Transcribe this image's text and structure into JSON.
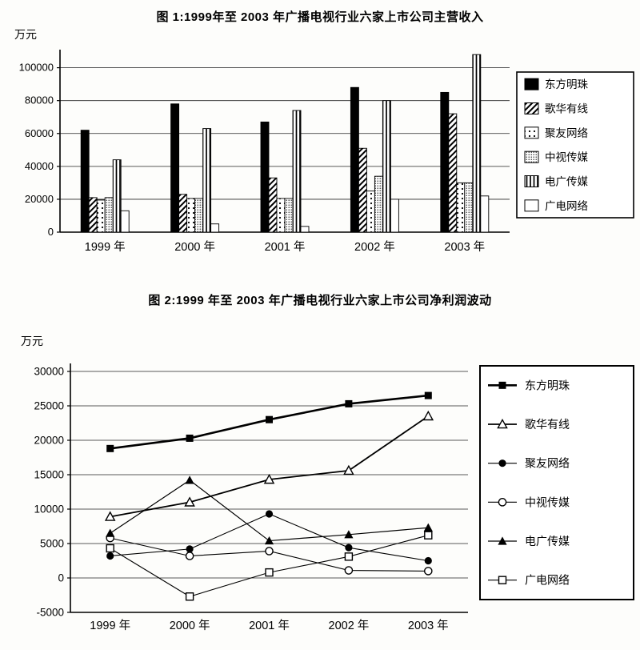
{
  "page": {
    "background": "#fdfdfb",
    "text_color": "#000000"
  },
  "chart_data": [
    {
      "id": "figure-1",
      "type": "bar",
      "title": "图 1:1999年至 2003 年广播电视行业六家上市公司主营收入",
      "ylabel": "万元",
      "xlabel": "",
      "categories": [
        "1999 年",
        "2000 年",
        "2001 年",
        "2002 年",
        "2003 年"
      ],
      "ylim": [
        0,
        111000
      ],
      "yticks": [
        0,
        20000,
        40000,
        60000,
        80000,
        100000
      ],
      "grid": true,
      "legend_position": "right",
      "series": [
        {
          "name": "东方明珠",
          "pattern": "solid-black",
          "values": [
            62000,
            78000,
            67000,
            88000,
            85000
          ]
        },
        {
          "name": "歌华有线",
          "pattern": "diagonal-hatch",
          "values": [
            21000,
            23000,
            33000,
            51000,
            72000
          ]
        },
        {
          "name": "聚友网络",
          "pattern": "coarse-dots",
          "values": [
            19500,
            20500,
            20500,
            25000,
            30000
          ]
        },
        {
          "name": "中视传媒",
          "pattern": "fine-dots",
          "values": [
            21000,
            20500,
            20500,
            34000,
            30000
          ]
        },
        {
          "name": "电广传媒",
          "pattern": "vertical-lines",
          "values": [
            44000,
            63000,
            74000,
            80000,
            108000
          ]
        },
        {
          "name": "广电网络",
          "pattern": "plain-white",
          "values": [
            13000,
            5000,
            3500,
            20000,
            22000
          ]
        }
      ]
    },
    {
      "id": "figure-2",
      "type": "line",
      "title": "图 2:1999 年至 2003 年广播电视行业六家上市公司净利润波动",
      "ylabel": "万元",
      "xlabel": "",
      "categories": [
        "1999 年",
        "2000 年",
        "2001 年",
        "2002 年",
        "2003 年"
      ],
      "ylim": [
        -5000,
        30000
      ],
      "yticks": [
        -5000,
        0,
        5000,
        10000,
        15000,
        20000,
        25000,
        30000
      ],
      "grid": true,
      "legend_position": "right",
      "series": [
        {
          "name": "东方明珠",
          "marker": "filled-square",
          "values": [
            18800,
            20300,
            23000,
            25300,
            26500
          ]
        },
        {
          "name": "歌华有线",
          "marker": "open-triangle",
          "values": [
            8900,
            11000,
            14300,
            15600,
            23500
          ]
        },
        {
          "name": "聚友网络",
          "marker": "filled-circle",
          "values": [
            3200,
            4200,
            9300,
            4400,
            2500
          ]
        },
        {
          "name": "中视传媒",
          "marker": "open-circle",
          "values": [
            5800,
            3200,
            3900,
            1100,
            1000
          ]
        },
        {
          "name": "电广传媒",
          "marker": "filled-triangle",
          "values": [
            6500,
            14200,
            5400,
            6300,
            7300
          ]
        },
        {
          "name": "广电网络",
          "marker": "open-square",
          "values": [
            4300,
            -2700,
            800,
            3100,
            6200
          ]
        }
      ]
    }
  ]
}
